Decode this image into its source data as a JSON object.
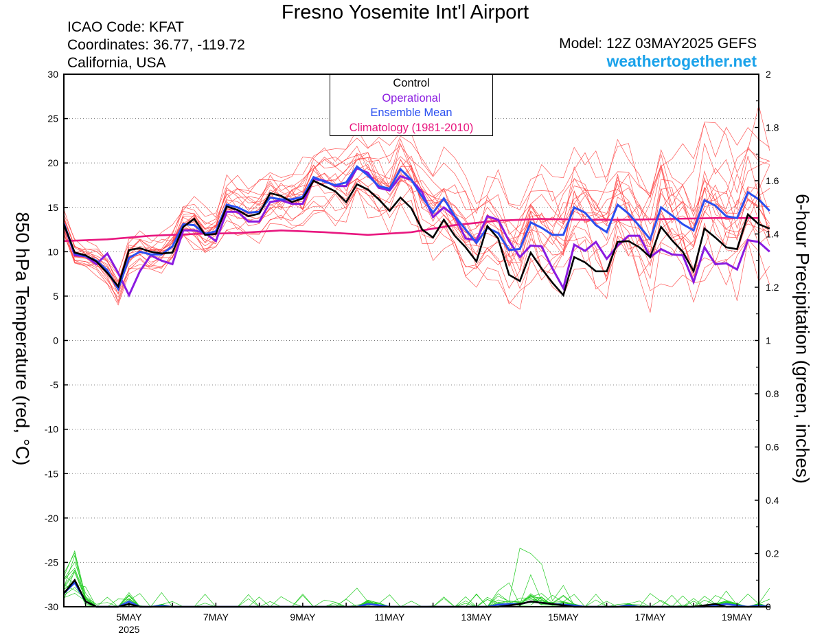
{
  "header": {
    "title": "Fresno Yosemite Int'l Airport",
    "icao": "ICAO Code: KFAT",
    "coords": "Coordinates: 36.77, -119.72",
    "region": "California, USA",
    "model": "Model: 12Z 03MAY2025 GEFS",
    "site": "weathertogether.net"
  },
  "chart_data": {
    "type": "line",
    "ylabel_left": "850 hPa Temperature (red, °C)",
    "ylabel_right": "6-hour Precipitation (green, inches)",
    "y_left_range": [
      -30,
      30
    ],
    "y_left_ticks": [
      "30",
      "25",
      "20",
      "15",
      "10",
      "5",
      "0",
      "-5",
      "-10",
      "-15",
      "-20",
      "-25",
      "-30"
    ],
    "y_right_range": [
      0,
      2
    ],
    "y_right_ticks": [
      "2",
      "1.8",
      "1.6",
      "1.4",
      "1.2",
      "1",
      "0.8",
      "0.6",
      "0.4",
      "0.2",
      "0"
    ],
    "x_range_days": [
      3.5,
      19.5
    ],
    "x_ticks": [
      {
        "day": 5,
        "label": "5MAY",
        "sub": "2025"
      },
      {
        "day": 7,
        "label": "7MAY",
        "sub": ""
      },
      {
        "day": 9,
        "label": "9MAY",
        "sub": ""
      },
      {
        "day": 11,
        "label": "11MAY",
        "sub": ""
      },
      {
        "day": 13,
        "label": "13MAY",
        "sub": ""
      },
      {
        "day": 15,
        "label": "15MAY",
        "sub": ""
      },
      {
        "day": 17,
        "label": "17MAY",
        "sub": ""
      },
      {
        "day": 19,
        "label": "19MAY",
        "sub": ""
      }
    ],
    "grid": "dotted horizontal",
    "legend_position": "top-center",
    "legend": [
      {
        "name": "Control",
        "color": "#000000"
      },
      {
        "name": "Operational",
        "color": "#8a1ae0"
      },
      {
        "name": "Ensemble Mean",
        "color": "#2a4ff0"
      },
      {
        "name": "Climatology (1981-2010)",
        "color": "#e8177f"
      }
    ],
    "temp_series": {
      "control": [
        13.1,
        9.9,
        9.6,
        8.9,
        7.6,
        6.1,
        10.2,
        10.4,
        10.0,
        9.8,
        9.9,
        12.8,
        13.7,
        11.9,
        12.0,
        15.1,
        14.7,
        14.0,
        14.3,
        16.6,
        16.3,
        15.6,
        16.0,
        18.0,
        17.4,
        16.8,
        15.6,
        17.6,
        17.0,
        15.9,
        14.6,
        16.1,
        14.9,
        12.5,
        11.6,
        13.6,
        11.8,
        10.5,
        8.9,
        12.9,
        11.5,
        7.4,
        6.7,
        9.9,
        8.1,
        6.5,
        5.1,
        9.4,
        8.8,
        7.8,
        7.8,
        11.1,
        11.2,
        10.5,
        9.4,
        12.8,
        11.3,
        10.0,
        7.8,
        12.6,
        11.6,
        10.5,
        10.3,
        14.2,
        13.1,
        12.6
      ],
      "operational": [
        13.2,
        9.6,
        9.5,
        8.6,
        9.8,
        7.6,
        5.1,
        7.8,
        9.6,
        9.0,
        8.6,
        12.4,
        12.4,
        12.1,
        11.2,
        14.5,
        14.5,
        13.4,
        13.4,
        15.6,
        15.8,
        15.4,
        15.4,
        18.2,
        18.0,
        17.4,
        17.4,
        19.4,
        18.9,
        17.2,
        16.9,
        18.5,
        18.1,
        16.7,
        13.9,
        15.0,
        14.0,
        11.5,
        11.3,
        14.0,
        13.6,
        11.2,
        9.4,
        10.7,
        10.6,
        8.1,
        5.9,
        10.8,
        10.1,
        11.1,
        9.2,
        10.7,
        11.8,
        11.8,
        9.4,
        10.3,
        9.7,
        9.6,
        6.6,
        10.5,
        8.6,
        8.7,
        8.0,
        11.3,
        11.1,
        10.0
      ],
      "mean": [
        13.2,
        9.8,
        9.5,
        9.0,
        7.9,
        5.8,
        9.3,
        10.0,
        9.7,
        9.7,
        10.6,
        13.1,
        13.0,
        12.0,
        12.3,
        15.3,
        15.0,
        14.4,
        14.5,
        16.1,
        15.9,
        15.9,
        16.2,
        18.4,
        17.9,
        17.5,
        17.8,
        19.6,
        18.6,
        17.4,
        17.1,
        19.3,
        18.1,
        16.2,
        14.4,
        16.0,
        14.0,
        12.5,
        11.0,
        12.7,
        12.1,
        10.2,
        10.3,
        13.3,
        12.7,
        11.9,
        11.9,
        15.0,
        14.4,
        13.0,
        12.2,
        15.3,
        14.3,
        12.9,
        11.4,
        15.0,
        14.1,
        13.1,
        12.4,
        15.8,
        15.2,
        14.0,
        13.8,
        16.7,
        15.9,
        14.6
      ],
      "climatology": [
        [
          3.5,
          11.2
        ],
        [
          4.5,
          11.4
        ],
        [
          5.5,
          11.8
        ],
        [
          6.5,
          12.0
        ],
        [
          7.5,
          12.1
        ],
        [
          8.5,
          12.4
        ],
        [
          9.5,
          12.2
        ],
        [
          10.5,
          11.9
        ],
        [
          11.5,
          12.2
        ],
        [
          12.5,
          13.0
        ],
        [
          13.5,
          13.5
        ],
        [
          14.5,
          13.7
        ],
        [
          15.5,
          13.6
        ],
        [
          16.5,
          13.6
        ],
        [
          17.5,
          13.7
        ],
        [
          18.5,
          13.8
        ],
        [
          19.5,
          13.8
        ]
      ]
    },
    "precip_series": {
      "control": [
        0.05,
        0.1,
        0.02,
        0,
        0,
        0,
        0.01,
        0,
        0,
        0,
        0,
        0,
        0,
        0,
        0,
        0,
        0,
        0,
        0,
        0,
        0,
        0,
        0,
        0,
        0,
        0,
        0,
        0,
        0,
        0,
        0,
        0,
        0,
        0,
        0,
        0,
        0,
        0,
        0,
        0,
        0,
        0.005,
        0.01,
        0.02,
        0.015,
        0.01,
        0.005,
        0,
        0,
        0,
        0,
        0,
        0,
        0,
        0,
        0,
        0,
        0,
        0,
        0.005,
        0.01,
        0,
        0,
        0,
        0,
        0
      ],
      "mean": [
        0.05,
        0.09,
        0.02,
        0,
        0,
        0,
        0.02,
        0,
        0,
        0.004,
        0,
        0,
        0,
        0,
        0,
        0,
        0,
        0,
        0,
        0,
        0,
        0,
        0,
        0,
        0,
        0,
        0,
        0,
        0.01,
        0.006,
        0,
        0,
        0,
        0,
        0,
        0,
        0,
        0,
        0,
        0,
        0.008,
        0.01,
        0.01,
        0.02,
        0.015,
        0.01,
        0.008,
        0.005,
        0,
        0,
        0,
        0,
        0.005,
        0,
        0,
        0,
        0,
        0,
        0,
        0,
        0.005,
        0.01,
        0.005,
        0,
        0.005,
        0
      ]
    }
  }
}
